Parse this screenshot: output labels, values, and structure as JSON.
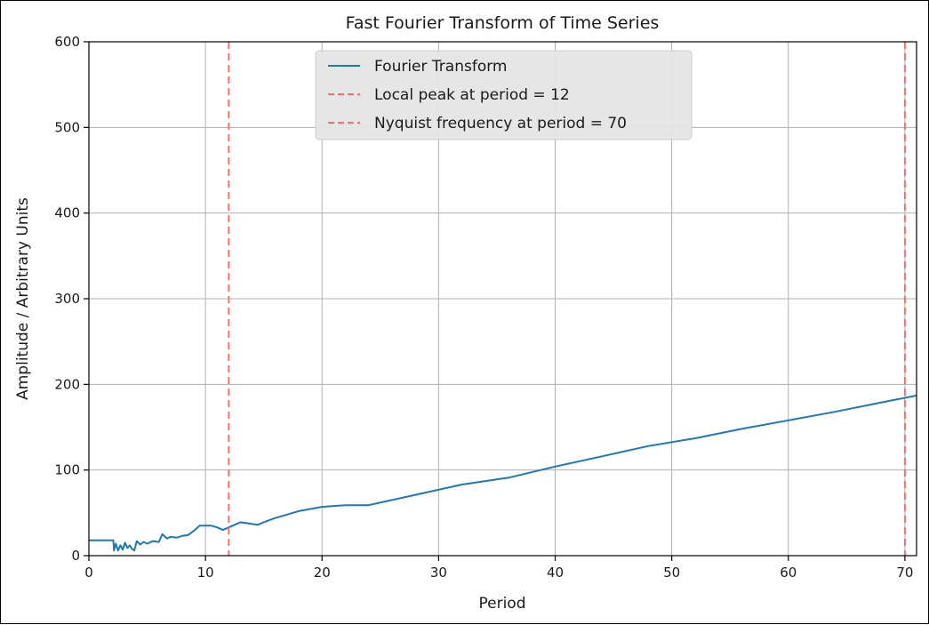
{
  "chart_data": {
    "type": "line",
    "title": "Fast Fourier Transform of Time Series",
    "xlabel": "Period",
    "ylabel": "Amplitude / Arbitrary Units",
    "xlim": [
      0,
      71
    ],
    "ylim": [
      0,
      600
    ],
    "xticks": [
      0,
      10,
      20,
      30,
      40,
      50,
      60,
      70
    ],
    "yticks": [
      0,
      100,
      200,
      300,
      400,
      500,
      600
    ],
    "grid": true,
    "legend_position": "upper center",
    "series": [
      {
        "name": "Fourier Transform",
        "color": "#1f77b4",
        "style": "solid",
        "x": [
          0,
          1,
          2.1,
          2.15,
          2.3,
          2.5,
          2.7,
          2.9,
          3.1,
          3.3,
          3.5,
          3.7,
          3.9,
          4.1,
          4.4,
          4.7,
          5.0,
          5.5,
          6.0,
          6.3,
          6.7,
          7.0,
          7.5,
          8.0,
          8.5,
          9.0,
          9.5,
          10.0,
          10.5,
          11.0,
          11.5,
          12.0,
          12.5,
          13.0,
          13.5,
          14.0,
          14.5,
          15.0,
          16.0,
          17.0,
          18.0,
          20.0,
          22.0,
          24.0,
          28.0,
          32.0,
          36.0,
          40.0,
          44.0,
          48.0,
          52.0,
          56.0,
          60.0,
          64.0,
          68.0,
          71.0
        ],
        "y": [
          18,
          18,
          18,
          6,
          14,
          6,
          12,
          7,
          15,
          9,
          12,
          8,
          6,
          17,
          13,
          16,
          14,
          17,
          16,
          25,
          20,
          22,
          21,
          23,
          24,
          29,
          35,
          35,
          35,
          33,
          30,
          33,
          36,
          39,
          38,
          37,
          36,
          39,
          44,
          48,
          52,
          57,
          59,
          59,
          71,
          83,
          91,
          104,
          116,
          128,
          137,
          148,
          158,
          168,
          179,
          187
        ]
      },
      {
        "name": "Local peak at period = 12",
        "color": "#ff6b6b",
        "style": "dashed",
        "x_value": 12
      },
      {
        "name": "Nyquist frequency at period = 70",
        "color": "#ff6b6b",
        "style": "dashed",
        "x_value": 70
      }
    ]
  }
}
